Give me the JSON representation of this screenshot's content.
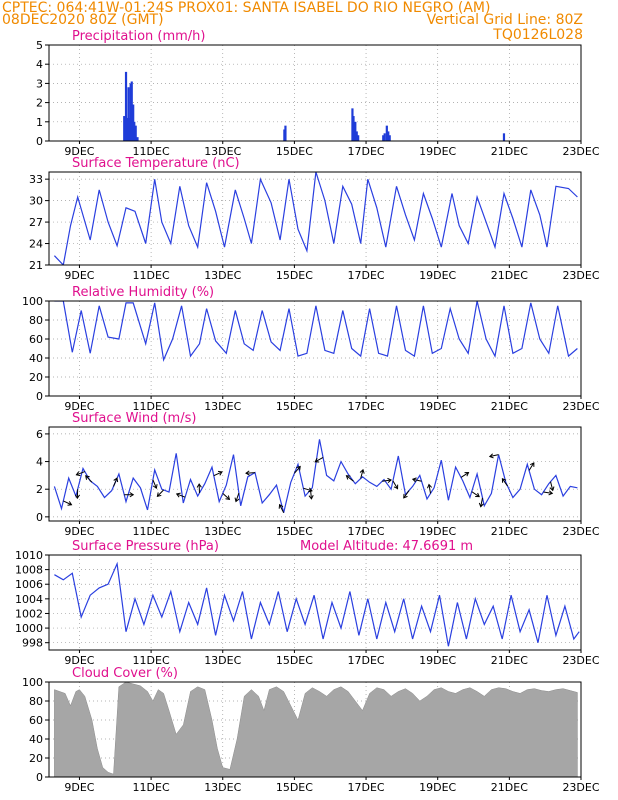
{
  "header": {
    "line1_left": "CPTEC:  064:41W-01:24S  PROX01: SANTA ISABEL DO RIO NEGRO (AM)",
    "line2_left": "08DEC2020 80Z (GMT)",
    "line2_right": "Vertical Grid Line: 80Z",
    "line3_right": "TQ0126L028"
  },
  "colors": {
    "header_text": "#f08a00",
    "panel_title": "#e0108e",
    "series_line": "#2a3fe0",
    "bars": "#1f3cd8",
    "cloud_fill": "#a6a6a6",
    "grid": "#9a9a9a"
  },
  "x_axis": {
    "start": "08DEC2020 08Z",
    "end": "23DEC2020 00Z",
    "tick_labels": [
      "9DEC",
      "11DEC",
      "13DEC",
      "15DEC",
      "17DEC",
      "19DEC",
      "21DEC",
      "23DEC"
    ]
  },
  "chart_data": [
    {
      "type": "bar",
      "title": "Precipitation (mm/h)",
      "ylim": [
        0,
        5
      ],
      "yticks": [
        0,
        1,
        2,
        3,
        4,
        5
      ],
      "grid": true,
      "x_day_offset_from_08DEC_00Z": [
        2.25,
        2.3,
        2.34,
        2.37,
        2.4,
        2.43,
        2.46,
        2.5,
        2.53,
        2.57,
        2.62,
        6.72,
        6.75,
        8.62,
        8.65,
        8.7,
        8.74,
        8.78,
        9.48,
        9.52,
        9.58,
        9.62,
        9.66,
        12.85
      ],
      "values": [
        1.3,
        3.6,
        1.2,
        2.8,
        1.2,
        3.0,
        3.1,
        1.9,
        1.0,
        0.8,
        0.2,
        0.6,
        0.8,
        1.7,
        1.3,
        1.0,
        0.5,
        0.3,
        0.3,
        0.4,
        0.8,
        0.5,
        0.3,
        0.4
      ]
    },
    {
      "type": "line",
      "title": "Surface Temperature (nC)",
      "ylim": [
        21,
        34
      ],
      "yticks": [
        21,
        24,
        27,
        30,
        33
      ],
      "grid": true,
      "series": [
        {
          "x_day_offset_from_08DEC_00Z": [
            0.3,
            0.55,
            0.75,
            0.95,
            1.3,
            1.55,
            1.8,
            2.05,
            2.3,
            2.55,
            2.85,
            3.1,
            3.3,
            3.55,
            3.8,
            4.05,
            4.3,
            4.55,
            4.8,
            5.05,
            5.35,
            5.6,
            5.8,
            6.05,
            6.35,
            6.6,
            6.85,
            7.1,
            7.35,
            7.6,
            7.85,
            8.1,
            8.35,
            8.6,
            8.85,
            9.05,
            9.3,
            9.55,
            9.85,
            10.1,
            10.35,
            10.6,
            10.85,
            11.1,
            11.4,
            11.6,
            11.85,
            12.1,
            12.35,
            12.6,
            12.85,
            13.1,
            13.35,
            13.6,
            13.85,
            14.05,
            14.3,
            14.65,
            14.9
          ],
          "values": [
            22.3,
            21.0,
            26.5,
            30.5,
            24.5,
            31.5,
            27.0,
            23.7,
            29.0,
            28.5,
            24.0,
            33.0,
            27.0,
            24.0,
            32.0,
            26.5,
            23.5,
            32.5,
            28.5,
            23.5,
            31.5,
            27.5,
            24.0,
            33.0,
            29.7,
            24.5,
            33.0,
            26.0,
            23.0,
            34.0,
            30.0,
            24.0,
            32.0,
            29.5,
            24.0,
            33.0,
            29.0,
            23.5,
            32.0,
            28.0,
            24.5,
            31.0,
            27.5,
            23.5,
            31.0,
            26.5,
            24.0,
            30.5,
            27.0,
            23.5,
            31.0,
            27.5,
            23.5,
            31.5,
            28.0,
            23.5,
            32.0,
            31.7,
            30.5
          ]
        }
      ]
    },
    {
      "type": "line",
      "title": "Relative Humidity (%)",
      "ylim": [
        0,
        100
      ],
      "yticks": [
        0,
        20,
        40,
        60,
        80,
        100
      ],
      "grid": true,
      "series": [
        {
          "x_day_offset_from_08DEC_00Z": [
            0.3,
            0.55,
            0.8,
            1.05,
            1.3,
            1.55,
            1.8,
            2.1,
            2.3,
            2.5,
            2.85,
            3.1,
            3.35,
            3.6,
            3.85,
            4.1,
            4.35,
            4.55,
            4.8,
            5.1,
            5.35,
            5.6,
            5.85,
            6.1,
            6.35,
            6.6,
            6.85,
            7.1,
            7.35,
            7.6,
            7.85,
            8.1,
            8.35,
            8.6,
            8.85,
            9.1,
            9.35,
            9.6,
            9.85,
            10.1,
            10.35,
            10.6,
            10.85,
            11.1,
            11.35,
            11.6,
            11.85,
            12.1,
            12.35,
            12.6,
            12.85,
            13.1,
            13.35,
            13.6,
            13.85,
            14.1,
            14.35,
            14.65,
            14.9
          ],
          "values": [
            100,
            100,
            46,
            90,
            45,
            95,
            62,
            60,
            98,
            98,
            55,
            98,
            38,
            60,
            95,
            42,
            55,
            92,
            58,
            45,
            90,
            55,
            48,
            90,
            57,
            48,
            92,
            42,
            45,
            95,
            48,
            45,
            90,
            50,
            42,
            92,
            45,
            42,
            95,
            48,
            42,
            95,
            45,
            50,
            92,
            60,
            45,
            100,
            60,
            42,
            95,
            45,
            50,
            98,
            60,
            45,
            95,
            42,
            50
          ]
        }
      ]
    },
    {
      "type": "line",
      "title": "Surface Wind (m/s)",
      "ylim": [
        -0.3,
        6.5
      ],
      "yticks": [
        0,
        2,
        4,
        6
      ],
      "grid": true,
      "series": [
        {
          "x_day_offset_from_08DEC_00Z": [
            0.3,
            0.5,
            0.7,
            0.9,
            1.1,
            1.3,
            1.5,
            1.7,
            1.9,
            2.1,
            2.3,
            2.5,
            2.7,
            2.9,
            3.1,
            3.3,
            3.5,
            3.7,
            3.9,
            4.1,
            4.3,
            4.5,
            4.7,
            4.9,
            5.1,
            5.3,
            5.5,
            5.7,
            5.9,
            6.1,
            6.3,
            6.5,
            6.7,
            6.9,
            7.1,
            7.3,
            7.5,
            7.7,
            7.9,
            8.1,
            8.3,
            8.5,
            8.7,
            8.9,
            9.1,
            9.3,
            9.5,
            9.7,
            9.9,
            10.1,
            10.3,
            10.5,
            10.7,
            10.9,
            11.1,
            11.3,
            11.5,
            11.7,
            11.9,
            12.1,
            12.3,
            12.5,
            12.7,
            12.9,
            13.1,
            13.3,
            13.5,
            13.7,
            13.9,
            14.1,
            14.3,
            14.5,
            14.7,
            14.9
          ],
          "values": [
            2.2,
            0.6,
            2.8,
            1.5,
            3.5,
            2.6,
            2.2,
            1.4,
            1.9,
            3.1,
            1.1,
            2.8,
            2.1,
            0.5,
            3.4,
            2.0,
            1.8,
            4.6,
            1.0,
            2.7,
            1.5,
            2.4,
            3.6,
            1.1,
            2.3,
            4.5,
            0.8,
            2.9,
            3.2,
            1.0,
            1.6,
            2.3,
            0.3,
            2.5,
            3.8,
            1.5,
            2.1,
            5.6,
            3.0,
            2.6,
            4.0,
            3.1,
            2.4,
            2.9,
            2.5,
            2.2,
            2.7,
            2.0,
            4.4,
            1.6,
            2.2,
            3.0,
            1.3,
            2.1,
            4.1,
            1.2,
            3.6,
            2.6,
            1.4,
            3.1,
            0.8,
            1.7,
            4.5,
            2.5,
            1.4,
            2.0,
            3.8,
            2.0,
            1.6,
            2.4,
            3.0,
            1.5,
            2.2,
            2.1
          ]
        }
      ],
      "vectors_uv": {
        "x_day_offset_from_08DEC_00Z": [
          0.55,
          0.95,
          1.15,
          1.35,
          1.95,
          2.25,
          3.05,
          3.35,
          3.95,
          4.35,
          4.75,
          5.0,
          5.45,
          5.9,
          6.7,
          7.0,
          7.25,
          7.45,
          7.8,
          8.65,
          8.85,
          9.45,
          9.75,
          10.2,
          10.55,
          10.8,
          11.65,
          11.95,
          12.25,
          12.7,
          12.95,
          13.55,
          13.95,
          14.15
        ]
      }
    },
    {
      "type": "line",
      "title": "Surface Pressure (hPa)",
      "annotation": "Model Altitude: 47.6691 m",
      "ylim": [
        997,
        1010
      ],
      "yticks": [
        998,
        1000,
        1002,
        1004,
        1006,
        1008,
        1010
      ],
      "grid": true,
      "series": [
        {
          "x_day_offset_from_08DEC_00Z": [
            0.3,
            0.55,
            0.8,
            1.05,
            1.3,
            1.55,
            1.8,
            2.05,
            2.3,
            2.55,
            2.8,
            3.05,
            3.3,
            3.55,
            3.8,
            4.05,
            4.3,
            4.55,
            4.8,
            5.05,
            5.3,
            5.55,
            5.8,
            6.05,
            6.3,
            6.55,
            6.8,
            7.05,
            7.3,
            7.55,
            7.8,
            8.05,
            8.3,
            8.55,
            8.8,
            9.05,
            9.3,
            9.55,
            9.8,
            10.05,
            10.3,
            10.55,
            10.8,
            11.05,
            11.3,
            11.55,
            11.8,
            12.05,
            12.3,
            12.55,
            12.8,
            13.05,
            13.3,
            13.55,
            13.8,
            14.05,
            14.3,
            14.55,
            14.8,
            14.95
          ],
          "values": [
            1007.3,
            1006.6,
            1007.5,
            1001.5,
            1004.5,
            1005.5,
            1006.0,
            1008.8,
            999.5,
            1004.0,
            1000.5,
            1004.5,
            1001.5,
            1005.0,
            999.5,
            1003.5,
            1000.5,
            1005.5,
            999.0,
            1004.5,
            1001.0,
            1005.0,
            998.5,
            1003.5,
            1000.5,
            1005.0,
            999.5,
            1004.0,
            1000.5,
            1004.5,
            998.5,
            1003.5,
            1000.0,
            1005.0,
            999.0,
            1004.0,
            998.5,
            1003.5,
            999.5,
            1004.0,
            998.5,
            1003.0,
            999.5,
            1004.5,
            997.5,
            1003.5,
            998.5,
            1004.0,
            1000.5,
            1003.0,
            998.5,
            1004.5,
            999.5,
            1002.5,
            998.0,
            1004.5,
            999.0,
            1003.0,
            998.5,
            999.5
          ]
        }
      ]
    },
    {
      "type": "area",
      "title": "Cloud Cover (%)",
      "ylim": [
        0,
        100
      ],
      "yticks": [
        0,
        20,
        40,
        60,
        80,
        100
      ],
      "grid": true,
      "series": [
        {
          "x_day_offset_from_08DEC_00Z": [
            0.3,
            0.45,
            0.6,
            0.75,
            0.9,
            1.0,
            1.15,
            1.35,
            1.5,
            1.65,
            1.8,
            1.95,
            2.1,
            2.3,
            2.5,
            2.7,
            2.9,
            3.05,
            3.2,
            3.35,
            3.5,
            3.7,
            3.9,
            4.1,
            4.3,
            4.5,
            4.7,
            4.85,
            5.0,
            5.2,
            5.4,
            5.6,
            5.8,
            6.0,
            6.15,
            6.3,
            6.5,
            6.7,
            6.9,
            7.1,
            7.3,
            7.5,
            7.7,
            7.9,
            8.1,
            8.3,
            8.5,
            8.7,
            8.9,
            9.1,
            9.3,
            9.5,
            9.7,
            9.9,
            10.1,
            10.3,
            10.5,
            10.7,
            10.9,
            11.1,
            11.3,
            11.5,
            11.7,
            11.9,
            12.1,
            12.3,
            12.5,
            12.7,
            12.9,
            13.1,
            13.3,
            13.5,
            13.7,
            13.9,
            14.1,
            14.3,
            14.5,
            14.7,
            14.9
          ],
          "values": [
            92,
            90,
            88,
            75,
            90,
            92,
            85,
            60,
            30,
            10,
            5,
            3,
            95,
            100,
            98,
            96,
            90,
            80,
            92,
            88,
            70,
            45,
            55,
            90,
            95,
            92,
            60,
            30,
            10,
            8,
            40,
            85,
            92,
            85,
            70,
            92,
            95,
            90,
            75,
            60,
            88,
            94,
            90,
            85,
            92,
            95,
            90,
            80,
            70,
            88,
            94,
            92,
            85,
            90,
            93,
            88,
            80,
            85,
            92,
            94,
            90,
            88,
            92,
            94,
            90,
            85,
            92,
            94,
            93,
            90,
            88,
            92,
            93,
            91,
            90,
            92,
            93,
            91,
            89
          ]
        }
      ]
    }
  ]
}
